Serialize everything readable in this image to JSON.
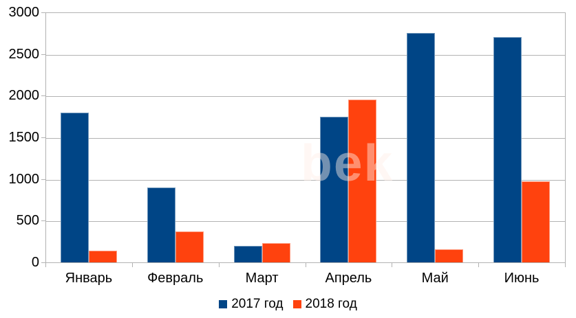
{
  "chart_data": {
    "type": "bar",
    "title": "",
    "categories": [
      "Январь",
      "Февраль",
      "Март",
      "Апрель",
      "Май",
      "Июнь"
    ],
    "series": [
      {
        "name": "2017 год",
        "color": "#004586",
        "values": [
          1800,
          900,
          200,
          1750,
          2750,
          2700
        ]
      },
      {
        "name": "2018 год",
        "color": "#FF420E",
        "values": [
          140,
          370,
          230,
          1950,
          160,
          970
        ]
      }
    ],
    "xlabel": "",
    "ylabel": "",
    "ylim": [
      0,
      3000
    ],
    "y_ticks": [
      "0",
      "500",
      "1000",
      "1500",
      "2000",
      "2500",
      "3000"
    ],
    "grid": true,
    "grid_color": "#b2b2b2",
    "text_color": "#000000",
    "legend_position": "bottom"
  },
  "watermark": {
    "text": "bek"
  }
}
